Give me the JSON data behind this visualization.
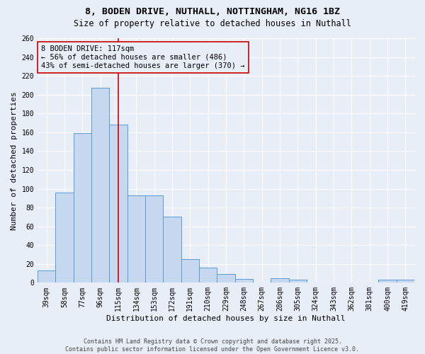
{
  "title_line1": "8, BODEN DRIVE, NUTHALL, NOTTINGHAM, NG16 1BZ",
  "title_line2": "Size of property relative to detached houses in Nuthall",
  "xlabel": "Distribution of detached houses by size in Nuthall",
  "ylabel": "Number of detached properties",
  "categories": [
    "39sqm",
    "58sqm",
    "77sqm",
    "96sqm",
    "115sqm",
    "134sqm",
    "153sqm",
    "172sqm",
    "191sqm",
    "210sqm",
    "229sqm",
    "248sqm",
    "267sqm",
    "286sqm",
    "305sqm",
    "324sqm",
    "343sqm",
    "362sqm",
    "381sqm",
    "400sqm",
    "419sqm"
  ],
  "values": [
    13,
    96,
    159,
    207,
    168,
    93,
    93,
    70,
    25,
    16,
    9,
    4,
    0,
    5,
    3,
    0,
    0,
    0,
    0,
    3,
    3
  ],
  "bar_color": "#c5d8f0",
  "bar_edge_color": "#5b9bd5",
  "vline_x_index": 4,
  "marker_label_line1": "8 BODEN DRIVE: 117sqm",
  "marker_label_line2": "← 56% of detached houses are smaller (486)",
  "marker_label_line3": "43% of semi-detached houses are larger (370) →",
  "vline_color": "#cc0000",
  "annotation_box_edge_color": "#cc0000",
  "background_color": "#e8eef8",
  "grid_color": "#ffffff",
  "ylim": [
    0,
    260
  ],
  "yticks": [
    0,
    20,
    40,
    60,
    80,
    100,
    120,
    140,
    160,
    180,
    200,
    220,
    240,
    260
  ],
  "footer_line1": "Contains HM Land Registry data © Crown copyright and database right 2025.",
  "footer_line2": "Contains public sector information licensed under the Open Government Licence v3.0.",
  "title_fontsize": 9.5,
  "subtitle_fontsize": 8.5,
  "axis_label_fontsize": 8,
  "tick_fontsize": 7,
  "annotation_fontsize": 7.5,
  "footer_fontsize": 6
}
